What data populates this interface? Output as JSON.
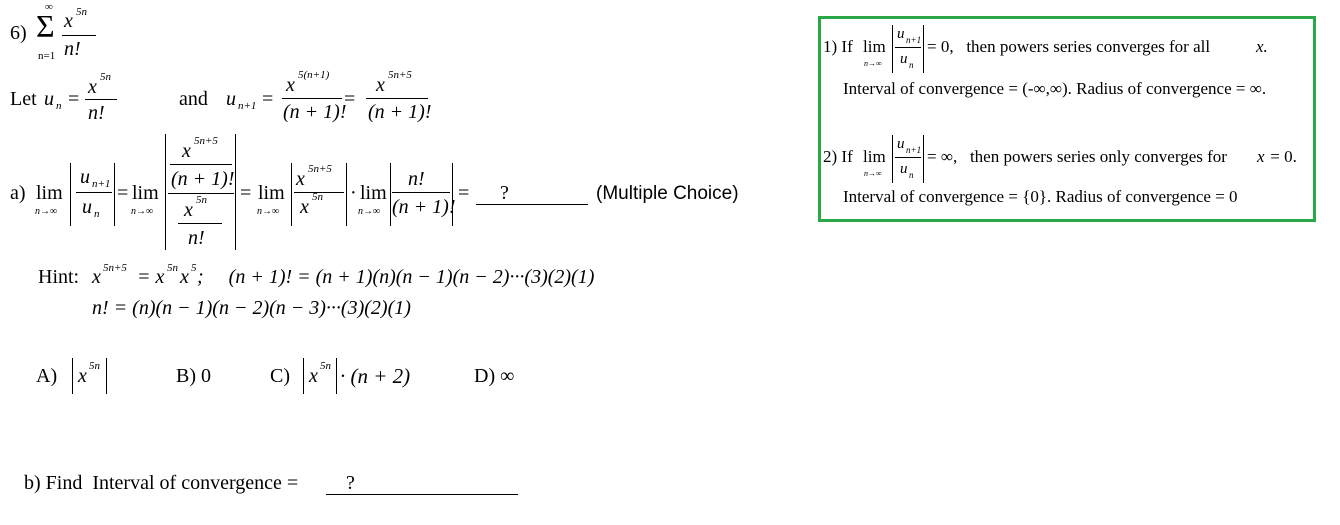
{
  "problem": {
    "number": "6)",
    "sum_upper": "∞",
    "sum_lower": "n=1",
    "sum_num": "x",
    "sum_num_exp": "5n",
    "sum_den": "n!"
  },
  "let_line": {
    "let": "Let",
    "un": "u",
    "un_sub": "n",
    "eq": "=",
    "un_num": "x",
    "un_num_exp": "5n",
    "un_den": "n!",
    "and": "and",
    "un1_sub": "n+1",
    "un1_num1": "x",
    "un1_num1_exp": "5(n+1)",
    "un1_den1": "(n + 1)!",
    "un1_num2": "x",
    "un1_num2_exp": "5n+5",
    "un1_den2": "(n + 1)!"
  },
  "part_a": {
    "label": "a)",
    "lim": "lim",
    "lim_sub": "n→∞",
    "top_exp": "5n+5",
    "mid_den": "(n + 1)!",
    "bottom_exp": "5n",
    "bottom_den": "n!",
    "frac_x": "x",
    "factor_n_fact": "n!",
    "factor_n1_fact": "(n + 1)!",
    "dot": "·",
    "answer": "?",
    "mc_label": "(Multiple Choice)"
  },
  "hint": {
    "label": "Hint:",
    "line1a": "x",
    "line1a_exp": "5n+5",
    "line1b": "= x",
    "line1b_exp": "5n",
    "line1c": "x",
    "line1c_exp": "5",
    "line1d": ";     (n + 1)! = (n + 1)(n)(n − 1)(n − 2)···(3)(2)(1)",
    "line2": "n! = (n)(n − 1)(n − 2)(n − 3)···(3)(2)(1)"
  },
  "choices": {
    "a_label": "A)",
    "a_x": "x",
    "a_exp": "5n",
    "b": "B) 0",
    "c_label": "C)",
    "c_x": "x",
    "c_exp": "5n",
    "c_rest": "· (n + 2)",
    "d": "D) ∞"
  },
  "part_b": {
    "text": "b) Find  Interval of convergence =",
    "answer": "?"
  },
  "box": {
    "r1_prefix": "1) If",
    "r1_suffix": "= 0,   then powers series converges for all",
    "r1_var": "x.",
    "r1_line2": "Interval of convergence = (-∞,∞).  Radius of convergence = ∞.",
    "r2_prefix": "2) If",
    "r2_suffix": "= ∞,   then powers series only converges for",
    "r2_var": "x",
    "r2_var_tail": " = 0.",
    "r2_line2": "Interval of convergence = {0}.  Radius of convergence = 0",
    "lim": "lim",
    "lim_sub": "n→∞",
    "frac_num": "u",
    "frac_num_sub": "n+1",
    "frac_den": "u",
    "frac_den_sub": "n",
    "border_color": "#2aa847"
  }
}
